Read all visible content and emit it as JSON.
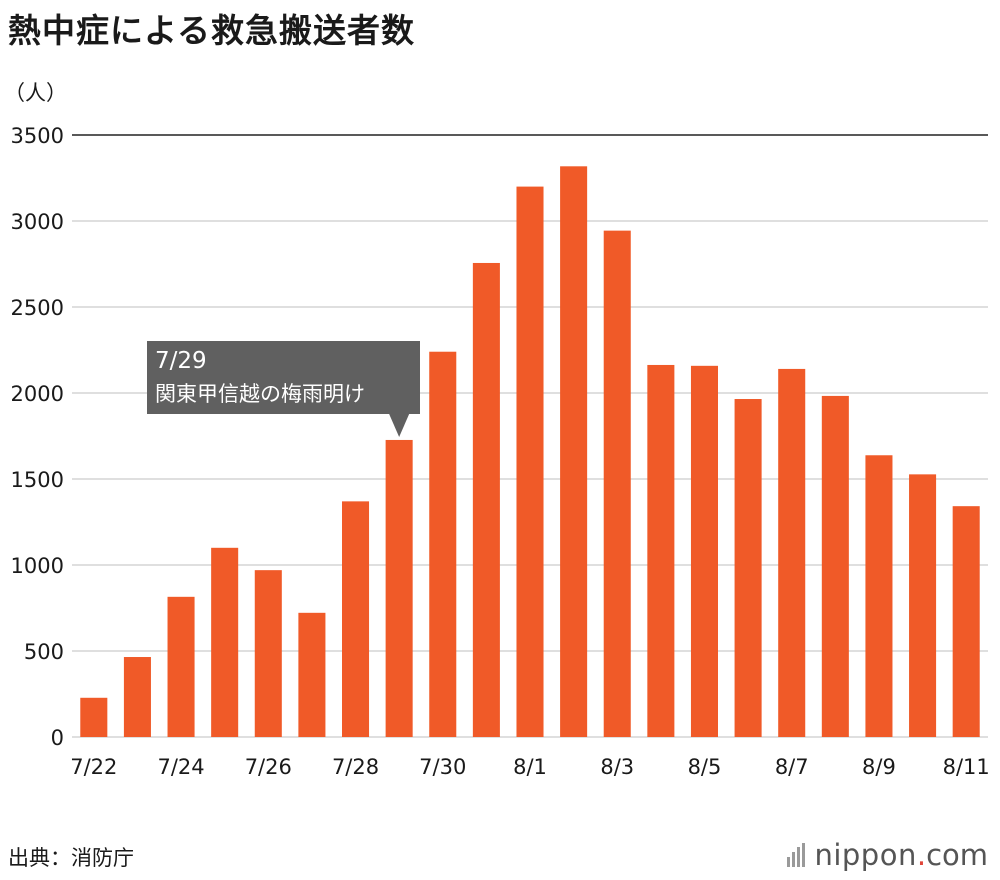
{
  "title": "熱中症による救急搬送者数",
  "source": "出典：消防庁",
  "brand": {
    "name": "nippon",
    "dot": ".",
    "tld": "com"
  },
  "colors": {
    "bar": "#f05a28",
    "callout": "#606060",
    "grid": "#cccccc",
    "topline": "#222222"
  },
  "chart_data": {
    "type": "bar",
    "title": "熱中症による救急搬送者数",
    "ylabel": "（人）",
    "xlabel": "",
    "ylim": [
      0,
      3500
    ],
    "yticks": [
      0,
      500,
      1000,
      1500,
      2000,
      2500,
      3000,
      3500
    ],
    "grid": true,
    "categories": [
      "7/22",
      "7/23",
      "7/24",
      "7/25",
      "7/26",
      "7/27",
      "7/28",
      "7/29",
      "7/30",
      "7/31",
      "8/1",
      "8/2",
      "8/3",
      "8/4",
      "8/5",
      "8/6",
      "8/7",
      "8/8",
      "8/9",
      "8/10",
      "8/11"
    ],
    "xtick_labels": [
      "7/22",
      "7/24",
      "7/26",
      "7/28",
      "7/30",
      "8/1",
      "8/3",
      "8/5",
      "8/7",
      "8/9",
      "8/11"
    ],
    "values": [
      228,
      465,
      815,
      1100,
      970,
      722,
      1370,
      1727,
      2240,
      2756,
      3200,
      3318,
      2944,
      2163,
      2158,
      1965,
      2140,
      1983,
      1638,
      1527,
      1342
    ],
    "annotations": [
      {
        "category": "7/29",
        "date": "7/29",
        "text": "関東甲信越の梅雨明け"
      }
    ]
  }
}
